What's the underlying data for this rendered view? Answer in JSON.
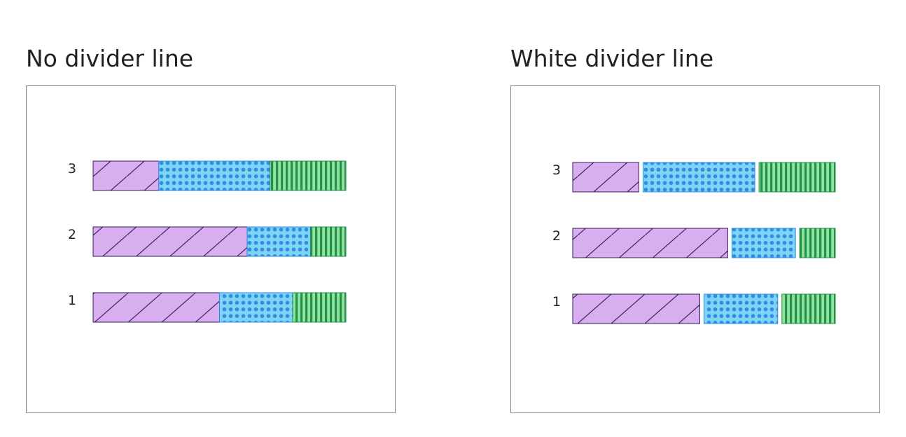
{
  "chart_data": [
    {
      "type": "bar",
      "orientation": "horizontal",
      "stacked": true,
      "title": "No divider line",
      "xlabel": "",
      "ylabel": "",
      "grid": false,
      "legend": "none",
      "divider": "none",
      "categories": [
        "3",
        "2",
        "1"
      ],
      "series": [
        {
          "color": "#d7aff0",
          "pattern": "diagonal-lines",
          "values": [
            26,
            61,
            50
          ]
        },
        {
          "color": "#7fd3f6",
          "pattern": "dots",
          "values": [
            44,
            25,
            29
          ]
        },
        {
          "color": "#8fe6a2",
          "pattern": "vertical-lines",
          "values": [
            30,
            14,
            21
          ]
        }
      ]
    },
    {
      "type": "bar",
      "orientation": "horizontal",
      "stacked": true,
      "title": "White divider line",
      "xlabel": "",
      "ylabel": "",
      "grid": false,
      "legend": "none",
      "divider": "white",
      "categories": [
        "3",
        "2",
        "1"
      ],
      "series": [
        {
          "color": "#d7aff0",
          "pattern": "diagonal-lines",
          "values": [
            26,
            61,
            50
          ]
        },
        {
          "color": "#7fd3f6",
          "pattern": "dots",
          "values": [
            44,
            25,
            29
          ]
        },
        {
          "color": "#8fe6a2",
          "pattern": "vertical-lines",
          "values": [
            30,
            14,
            21
          ]
        }
      ]
    }
  ]
}
